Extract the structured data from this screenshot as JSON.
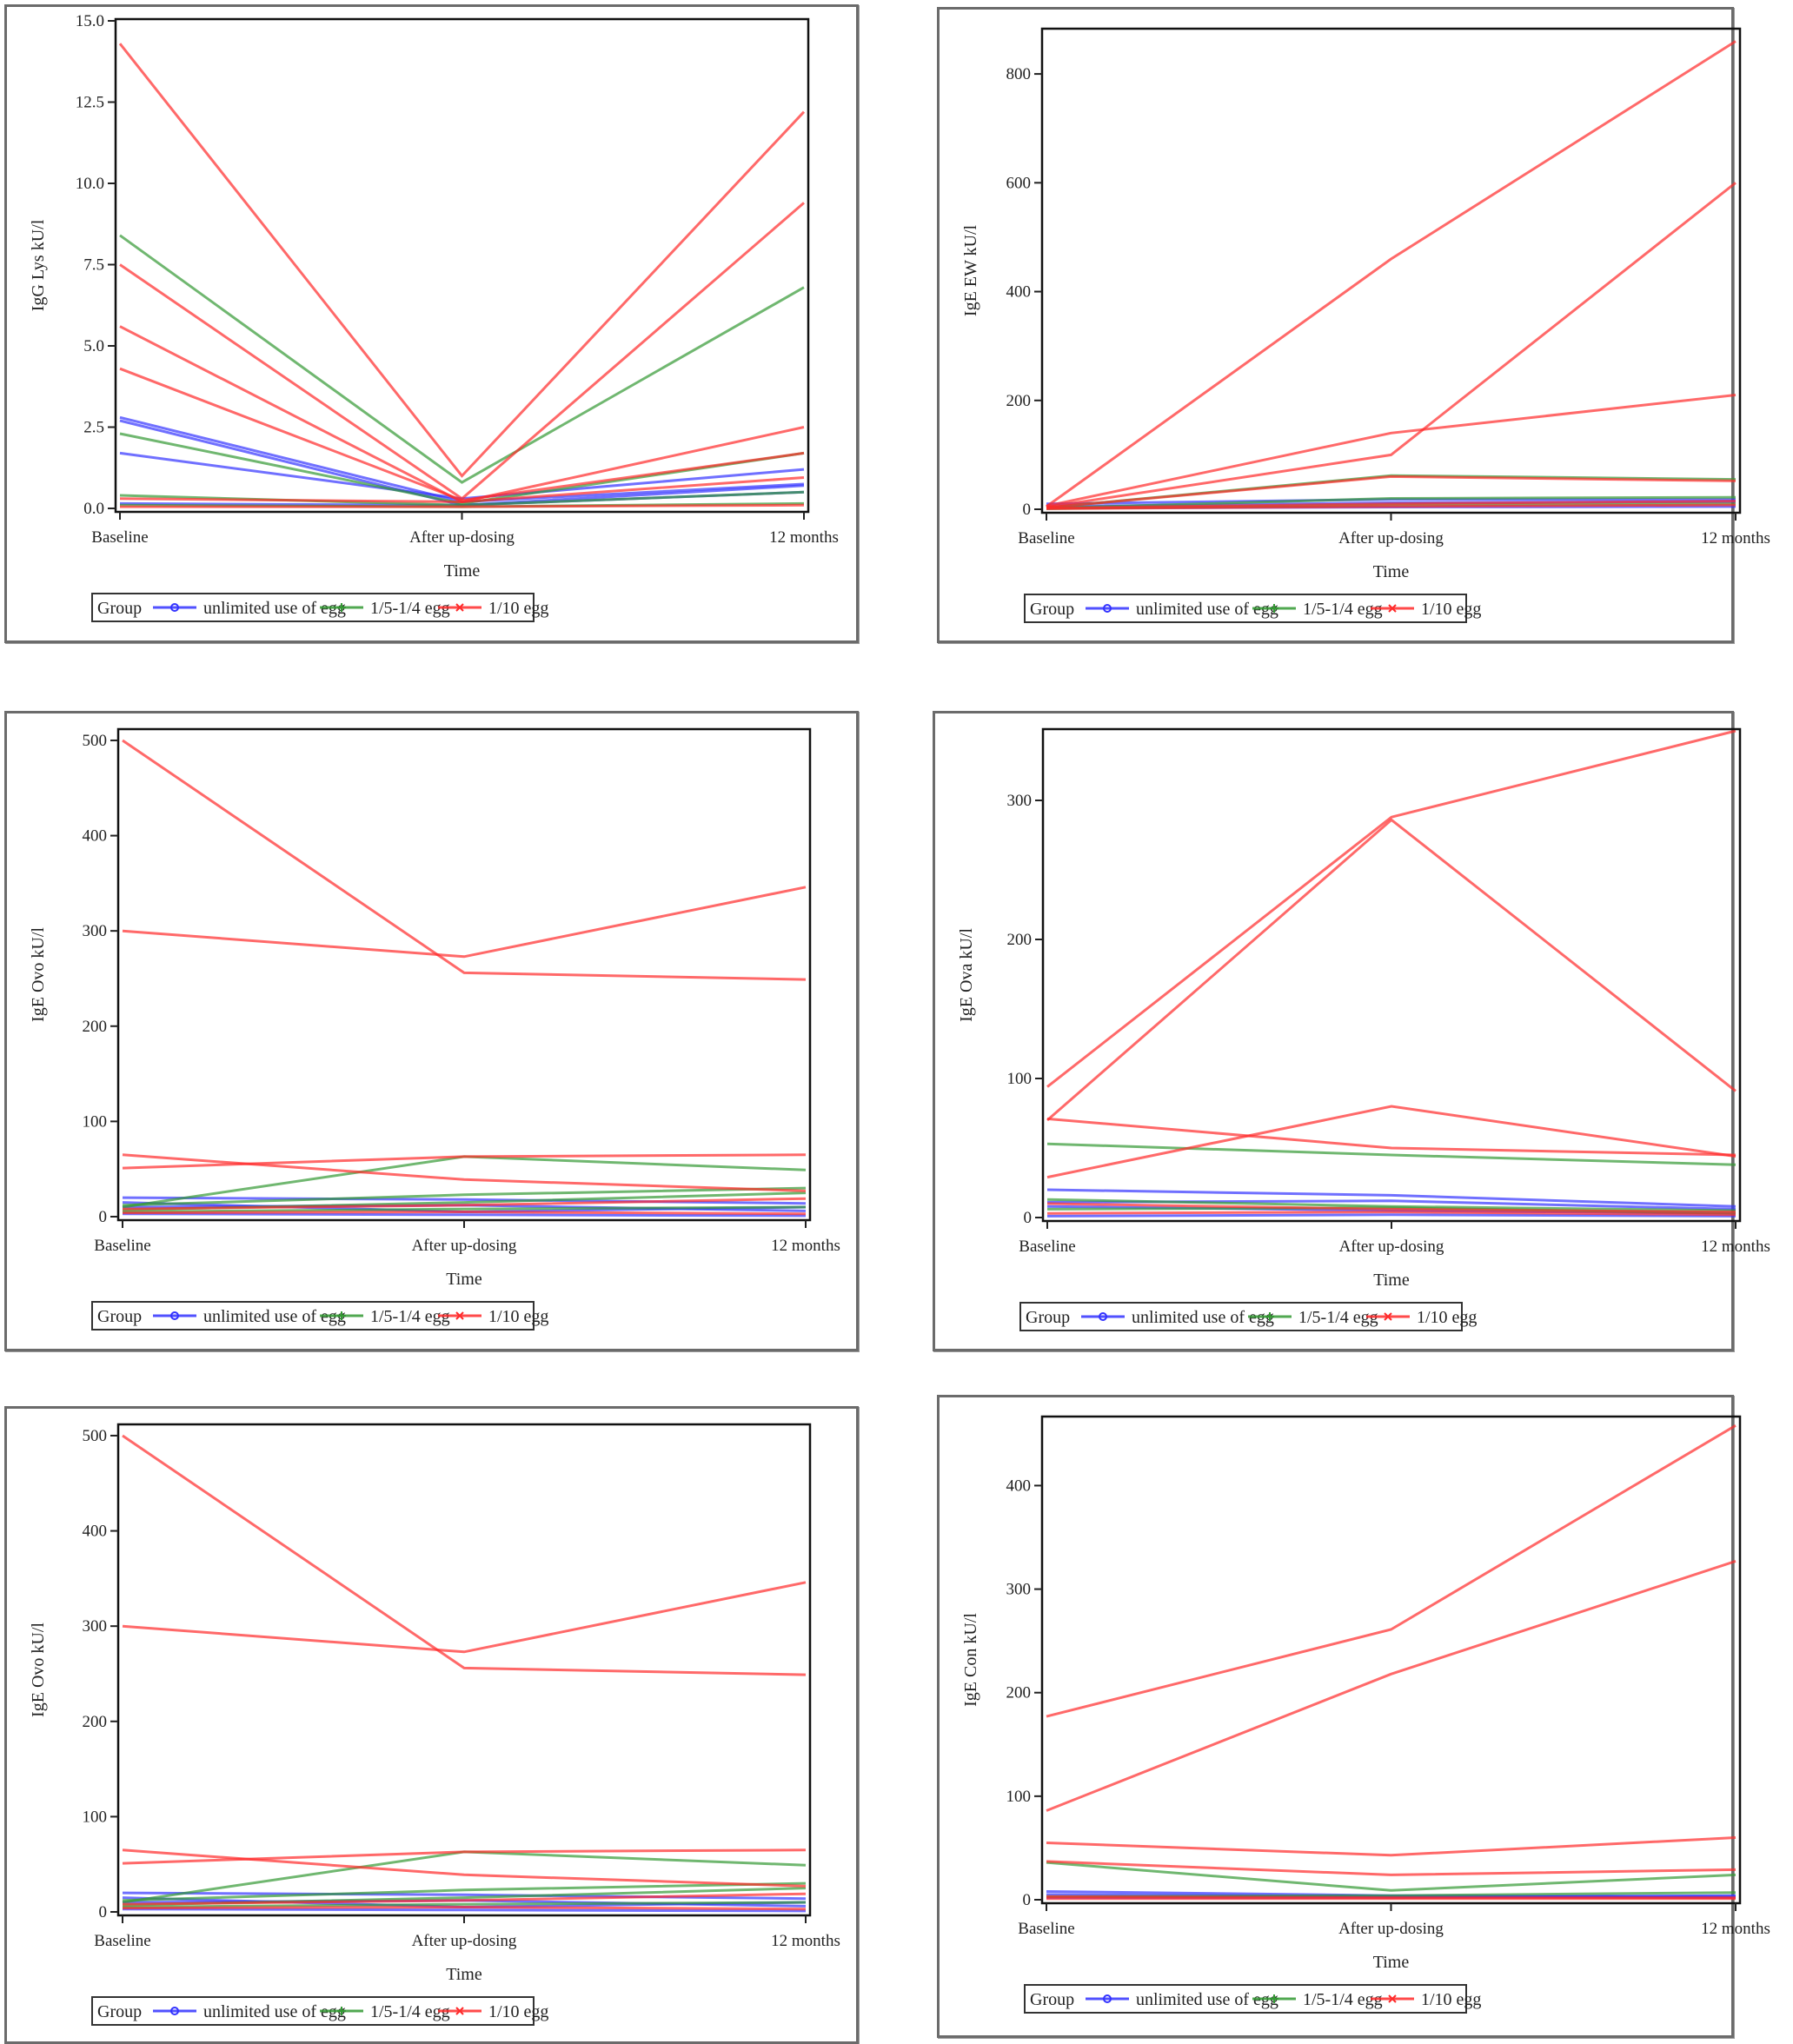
{
  "legend": {
    "title": "Group",
    "entries": [
      {
        "label": "unlimited use of egg",
        "color": "#3333ff",
        "marker": "circle"
      },
      {
        "label": "1/5-1/4 egg",
        "color": "#339933",
        "marker": "plus"
      },
      {
        "label": "1/10 egg",
        "color": "#ff2a2a",
        "marker": "x"
      }
    ]
  },
  "chart_data": [
    {
      "type": "line",
      "title": "",
      "xlabel": "Time",
      "ylabel": "IgG Lys kU/l",
      "categories": [
        "Baseline",
        "After up-dosing",
        "12 months"
      ],
      "ylim": [
        0,
        15
      ],
      "yticks": [
        0,
        2.5,
        5,
        7.5,
        10,
        12.5,
        15
      ],
      "ytick_labels": [
        "0.0",
        "2.5",
        "5.0",
        "7.5",
        "10.0",
        "12.5",
        "15.0"
      ],
      "grid": false,
      "legend_position": "bottom",
      "series": [
        {
          "name": "1/10 egg",
          "group": 2,
          "values": [
            14.3,
            1.0,
            12.2
          ]
        },
        {
          "name": "1/10 egg",
          "group": 2,
          "values": [
            7.5,
            0.3,
            9.4
          ]
        },
        {
          "name": "1/10 egg",
          "group": 2,
          "values": [
            5.6,
            0.2,
            2.5
          ]
        },
        {
          "name": "1/10 egg",
          "group": 2,
          "values": [
            4.3,
            0.25,
            1.7
          ]
        },
        {
          "name": "1/10 egg",
          "group": 2,
          "values": [
            0.3,
            0.2,
            0.95
          ]
        },
        {
          "name": "1/10 egg",
          "group": 2,
          "values": [
            0.05,
            0.05,
            0.1
          ]
        },
        {
          "name": "1/5-1/4 egg",
          "group": 1,
          "values": [
            8.4,
            0.8,
            6.8
          ]
        },
        {
          "name": "1/5-1/4 egg",
          "group": 1,
          "values": [
            2.3,
            0.15,
            1.7
          ]
        },
        {
          "name": "1/5-1/4 egg",
          "group": 1,
          "values": [
            0.4,
            0.1,
            0.5
          ]
        },
        {
          "name": "1/5-1/4 egg",
          "group": 1,
          "values": [
            0.1,
            0.05,
            0.15
          ]
        },
        {
          "name": "unlimited use of egg",
          "group": 0,
          "values": [
            2.8,
            0.2,
            0.75
          ]
        },
        {
          "name": "unlimited use of egg",
          "group": 0,
          "values": [
            2.7,
            0.1,
            0.7
          ]
        },
        {
          "name": "unlimited use of egg",
          "group": 0,
          "values": [
            1.7,
            0.3,
            1.2
          ]
        },
        {
          "name": "unlimited use of egg",
          "group": 0,
          "values": [
            0.15,
            0.1,
            0.5
          ]
        }
      ]
    },
    {
      "type": "line",
      "title": "",
      "xlabel": "Time",
      "ylabel": "IgE EW kU/l",
      "categories": [
        "Baseline",
        "After up-dosing",
        "12 months"
      ],
      "ylim": [
        0,
        880
      ],
      "yticks": [
        0,
        200,
        400,
        600,
        800
      ],
      "ytick_labels": [
        "0",
        "200",
        "400",
        "600",
        "800"
      ],
      "grid": false,
      "legend_position": "bottom",
      "series": [
        {
          "name": "1/10 egg",
          "group": 2,
          "values": [
            5,
            460,
            860
          ]
        },
        {
          "name": "1/10 egg",
          "group": 2,
          "values": [
            4,
            100,
            600
          ]
        },
        {
          "name": "1/10 egg",
          "group": 2,
          "values": [
            6,
            140,
            210
          ]
        },
        {
          "name": "1/10 egg",
          "group": 2,
          "values": [
            3,
            60,
            52
          ]
        },
        {
          "name": "1/10 egg",
          "group": 2,
          "values": [
            2,
            10,
            15
          ]
        },
        {
          "name": "1/10 egg",
          "group": 2,
          "values": [
            1,
            5,
            8
          ]
        },
        {
          "name": "1/5-1/4 egg",
          "group": 1,
          "values": [
            3,
            62,
            55
          ]
        },
        {
          "name": "1/5-1/4 egg",
          "group": 1,
          "values": [
            2,
            20,
            22
          ]
        },
        {
          "name": "1/5-1/4 egg",
          "group": 1,
          "values": [
            1,
            8,
            10
          ]
        },
        {
          "name": "unlimited use of egg",
          "group": 0,
          "values": [
            10,
            18,
            18
          ]
        },
        {
          "name": "unlimited use of egg",
          "group": 0,
          "values": [
            5,
            12,
            14
          ]
        },
        {
          "name": "unlimited use of egg",
          "group": 0,
          "values": [
            2,
            4,
            5
          ]
        }
      ]
    },
    {
      "type": "line",
      "title": "",
      "xlabel": "Time",
      "ylabel": "IgE Ovo kU/l",
      "categories": [
        "Baseline",
        "After up-dosing",
        "12 months"
      ],
      "ylim": [
        0,
        510
      ],
      "yticks": [
        0,
        100,
        200,
        300,
        400,
        500
      ],
      "ytick_labels": [
        "0",
        "100",
        "200",
        "300",
        "400",
        "500"
      ],
      "grid": false,
      "legend_position": "bottom",
      "series": [
        {
          "name": "1/10 egg",
          "group": 2,
          "values": [
            500,
            256,
            249
          ]
        },
        {
          "name": "1/10 egg",
          "group": 2,
          "values": [
            300,
            273,
            346
          ]
        },
        {
          "name": "1/10 egg",
          "group": 2,
          "values": [
            65,
            39,
            27
          ]
        },
        {
          "name": "1/10 egg",
          "group": 2,
          "values": [
            51,
            63,
            65
          ]
        },
        {
          "name": "1/10 egg",
          "group": 2,
          "values": [
            8,
            12,
            19
          ]
        },
        {
          "name": "1/10 egg",
          "group": 2,
          "values": [
            4,
            5,
            3
          ]
        },
        {
          "name": "1/5-1/4 egg",
          "group": 1,
          "values": [
            10,
            63,
            49
          ]
        },
        {
          "name": "1/5-1/4 egg",
          "group": 1,
          "values": [
            12,
            23,
            30
          ]
        },
        {
          "name": "1/5-1/4 egg",
          "group": 1,
          "values": [
            7,
            15,
            25
          ]
        },
        {
          "name": "1/5-1/4 egg",
          "group": 1,
          "values": [
            5,
            8,
            10
          ]
        },
        {
          "name": "unlimited use of egg",
          "group": 0,
          "values": [
            20,
            18,
            14
          ]
        },
        {
          "name": "unlimited use of egg",
          "group": 0,
          "values": [
            15,
            5,
            10
          ]
        },
        {
          "name": "unlimited use of egg",
          "group": 0,
          "values": [
            10,
            12,
            6
          ]
        },
        {
          "name": "unlimited use of egg",
          "group": 0,
          "values": [
            3,
            2,
            1
          ]
        }
      ]
    },
    {
      "type": "line",
      "title": "",
      "xlabel": "Time",
      "ylabel": "IgE Ova kU/l",
      "categories": [
        "Baseline",
        "After up-dosing",
        "12 months"
      ],
      "ylim": [
        0,
        350
      ],
      "yticks": [
        0,
        100,
        200,
        300
      ],
      "ytick_labels": [
        "0",
        "100",
        "200",
        "300"
      ],
      "grid": false,
      "legend_position": "bottom",
      "series": [
        {
          "name": "1/10 egg",
          "group": 2,
          "values": [
            94,
            288,
            350
          ]
        },
        {
          "name": "1/10 egg",
          "group": 2,
          "values": [
            70,
            286,
            91
          ]
        },
        {
          "name": "1/10 egg",
          "group": 2,
          "values": [
            71,
            50,
            45
          ]
        },
        {
          "name": "1/10 egg",
          "group": 2,
          "values": [
            29,
            80,
            44
          ]
        },
        {
          "name": "1/10 egg",
          "group": 2,
          "values": [
            10,
            6,
            4
          ]
        },
        {
          "name": "1/10 egg",
          "group": 2,
          "values": [
            3,
            4,
            2
          ]
        },
        {
          "name": "1/5-1/4 egg",
          "group": 1,
          "values": [
            53,
            45,
            38
          ]
        },
        {
          "name": "1/5-1/4 egg",
          "group": 1,
          "values": [
            13,
            8,
            5
          ]
        },
        {
          "name": "1/5-1/4 egg",
          "group": 1,
          "values": [
            6,
            7,
            3
          ]
        },
        {
          "name": "unlimited use of egg",
          "group": 0,
          "values": [
            20,
            16,
            8
          ]
        },
        {
          "name": "unlimited use of egg",
          "group": 0,
          "values": [
            11,
            12,
            6
          ]
        },
        {
          "name": "unlimited use of egg",
          "group": 0,
          "values": [
            8,
            5,
            3
          ]
        },
        {
          "name": "unlimited use of egg",
          "group": 0,
          "values": [
            1,
            2,
            1
          ]
        }
      ]
    },
    {
      "type": "line",
      "title": "",
      "xlabel": "Time",
      "ylabel": "IgE Ovo kU/l",
      "categories": [
        "Baseline",
        "After up-dosing",
        "12 months"
      ],
      "ylim": [
        0,
        510
      ],
      "yticks": [
        0,
        100,
        200,
        300,
        400,
        500
      ],
      "ytick_labels": [
        "0",
        "100",
        "200",
        "300",
        "400",
        "500"
      ],
      "grid": false,
      "legend_position": "bottom",
      "series": [
        {
          "name": "1/10 egg",
          "group": 2,
          "values": [
            500,
            256,
            249
          ]
        },
        {
          "name": "1/10 egg",
          "group": 2,
          "values": [
            300,
            273,
            346
          ]
        },
        {
          "name": "1/10 egg",
          "group": 2,
          "values": [
            65,
            39,
            27
          ]
        },
        {
          "name": "1/10 egg",
          "group": 2,
          "values": [
            51,
            63,
            65
          ]
        },
        {
          "name": "1/10 egg",
          "group": 2,
          "values": [
            8,
            12,
            19
          ]
        },
        {
          "name": "1/10 egg",
          "group": 2,
          "values": [
            4,
            5,
            3
          ]
        },
        {
          "name": "1/5-1/4 egg",
          "group": 1,
          "values": [
            10,
            63,
            49
          ]
        },
        {
          "name": "1/5-1/4 egg",
          "group": 1,
          "values": [
            12,
            23,
            30
          ]
        },
        {
          "name": "1/5-1/4 egg",
          "group": 1,
          "values": [
            7,
            15,
            25
          ]
        },
        {
          "name": "1/5-1/4 egg",
          "group": 1,
          "values": [
            5,
            8,
            10
          ]
        },
        {
          "name": "unlimited use of egg",
          "group": 0,
          "values": [
            20,
            18,
            14
          ]
        },
        {
          "name": "unlimited use of egg",
          "group": 0,
          "values": [
            15,
            5,
            10
          ]
        },
        {
          "name": "unlimited use of egg",
          "group": 0,
          "values": [
            10,
            12,
            6
          ]
        },
        {
          "name": "unlimited use of egg",
          "group": 0,
          "values": [
            3,
            2,
            1
          ]
        }
      ]
    },
    {
      "type": "line",
      "title": "",
      "xlabel": "Time",
      "ylabel": "IgE Con kU/l",
      "categories": [
        "Baseline",
        "After up-dosing",
        "12 months"
      ],
      "ylim": [
        0,
        465
      ],
      "yticks": [
        0,
        100,
        200,
        300,
        400
      ],
      "ytick_labels": [
        "0",
        "100",
        "200",
        "300",
        "400"
      ],
      "grid": false,
      "legend_position": "bottom",
      "series": [
        {
          "name": "1/10 egg",
          "group": 2,
          "values": [
            177,
            261,
            458
          ]
        },
        {
          "name": "1/10 egg",
          "group": 2,
          "values": [
            86,
            218,
            327
          ]
        },
        {
          "name": "1/10 egg",
          "group": 2,
          "values": [
            55,
            43,
            60
          ]
        },
        {
          "name": "1/10 egg",
          "group": 2,
          "values": [
            37,
            24,
            29
          ]
        },
        {
          "name": "1/10 egg",
          "group": 2,
          "values": [
            3,
            2,
            2
          ]
        },
        {
          "name": "1/10 egg",
          "group": 2,
          "values": [
            1,
            1,
            1
          ]
        },
        {
          "name": "1/5-1/4 egg",
          "group": 1,
          "values": [
            36,
            9,
            24
          ]
        },
        {
          "name": "1/5-1/4 egg",
          "group": 1,
          "values": [
            3,
            4,
            7
          ]
        },
        {
          "name": "unlimited use of egg",
          "group": 0,
          "values": [
            8,
            4,
            3
          ]
        },
        {
          "name": "unlimited use of egg",
          "group": 0,
          "values": [
            5,
            3,
            2
          ]
        },
        {
          "name": "unlimited use of egg",
          "group": 0,
          "values": [
            2,
            2,
            4
          ]
        }
      ]
    }
  ]
}
